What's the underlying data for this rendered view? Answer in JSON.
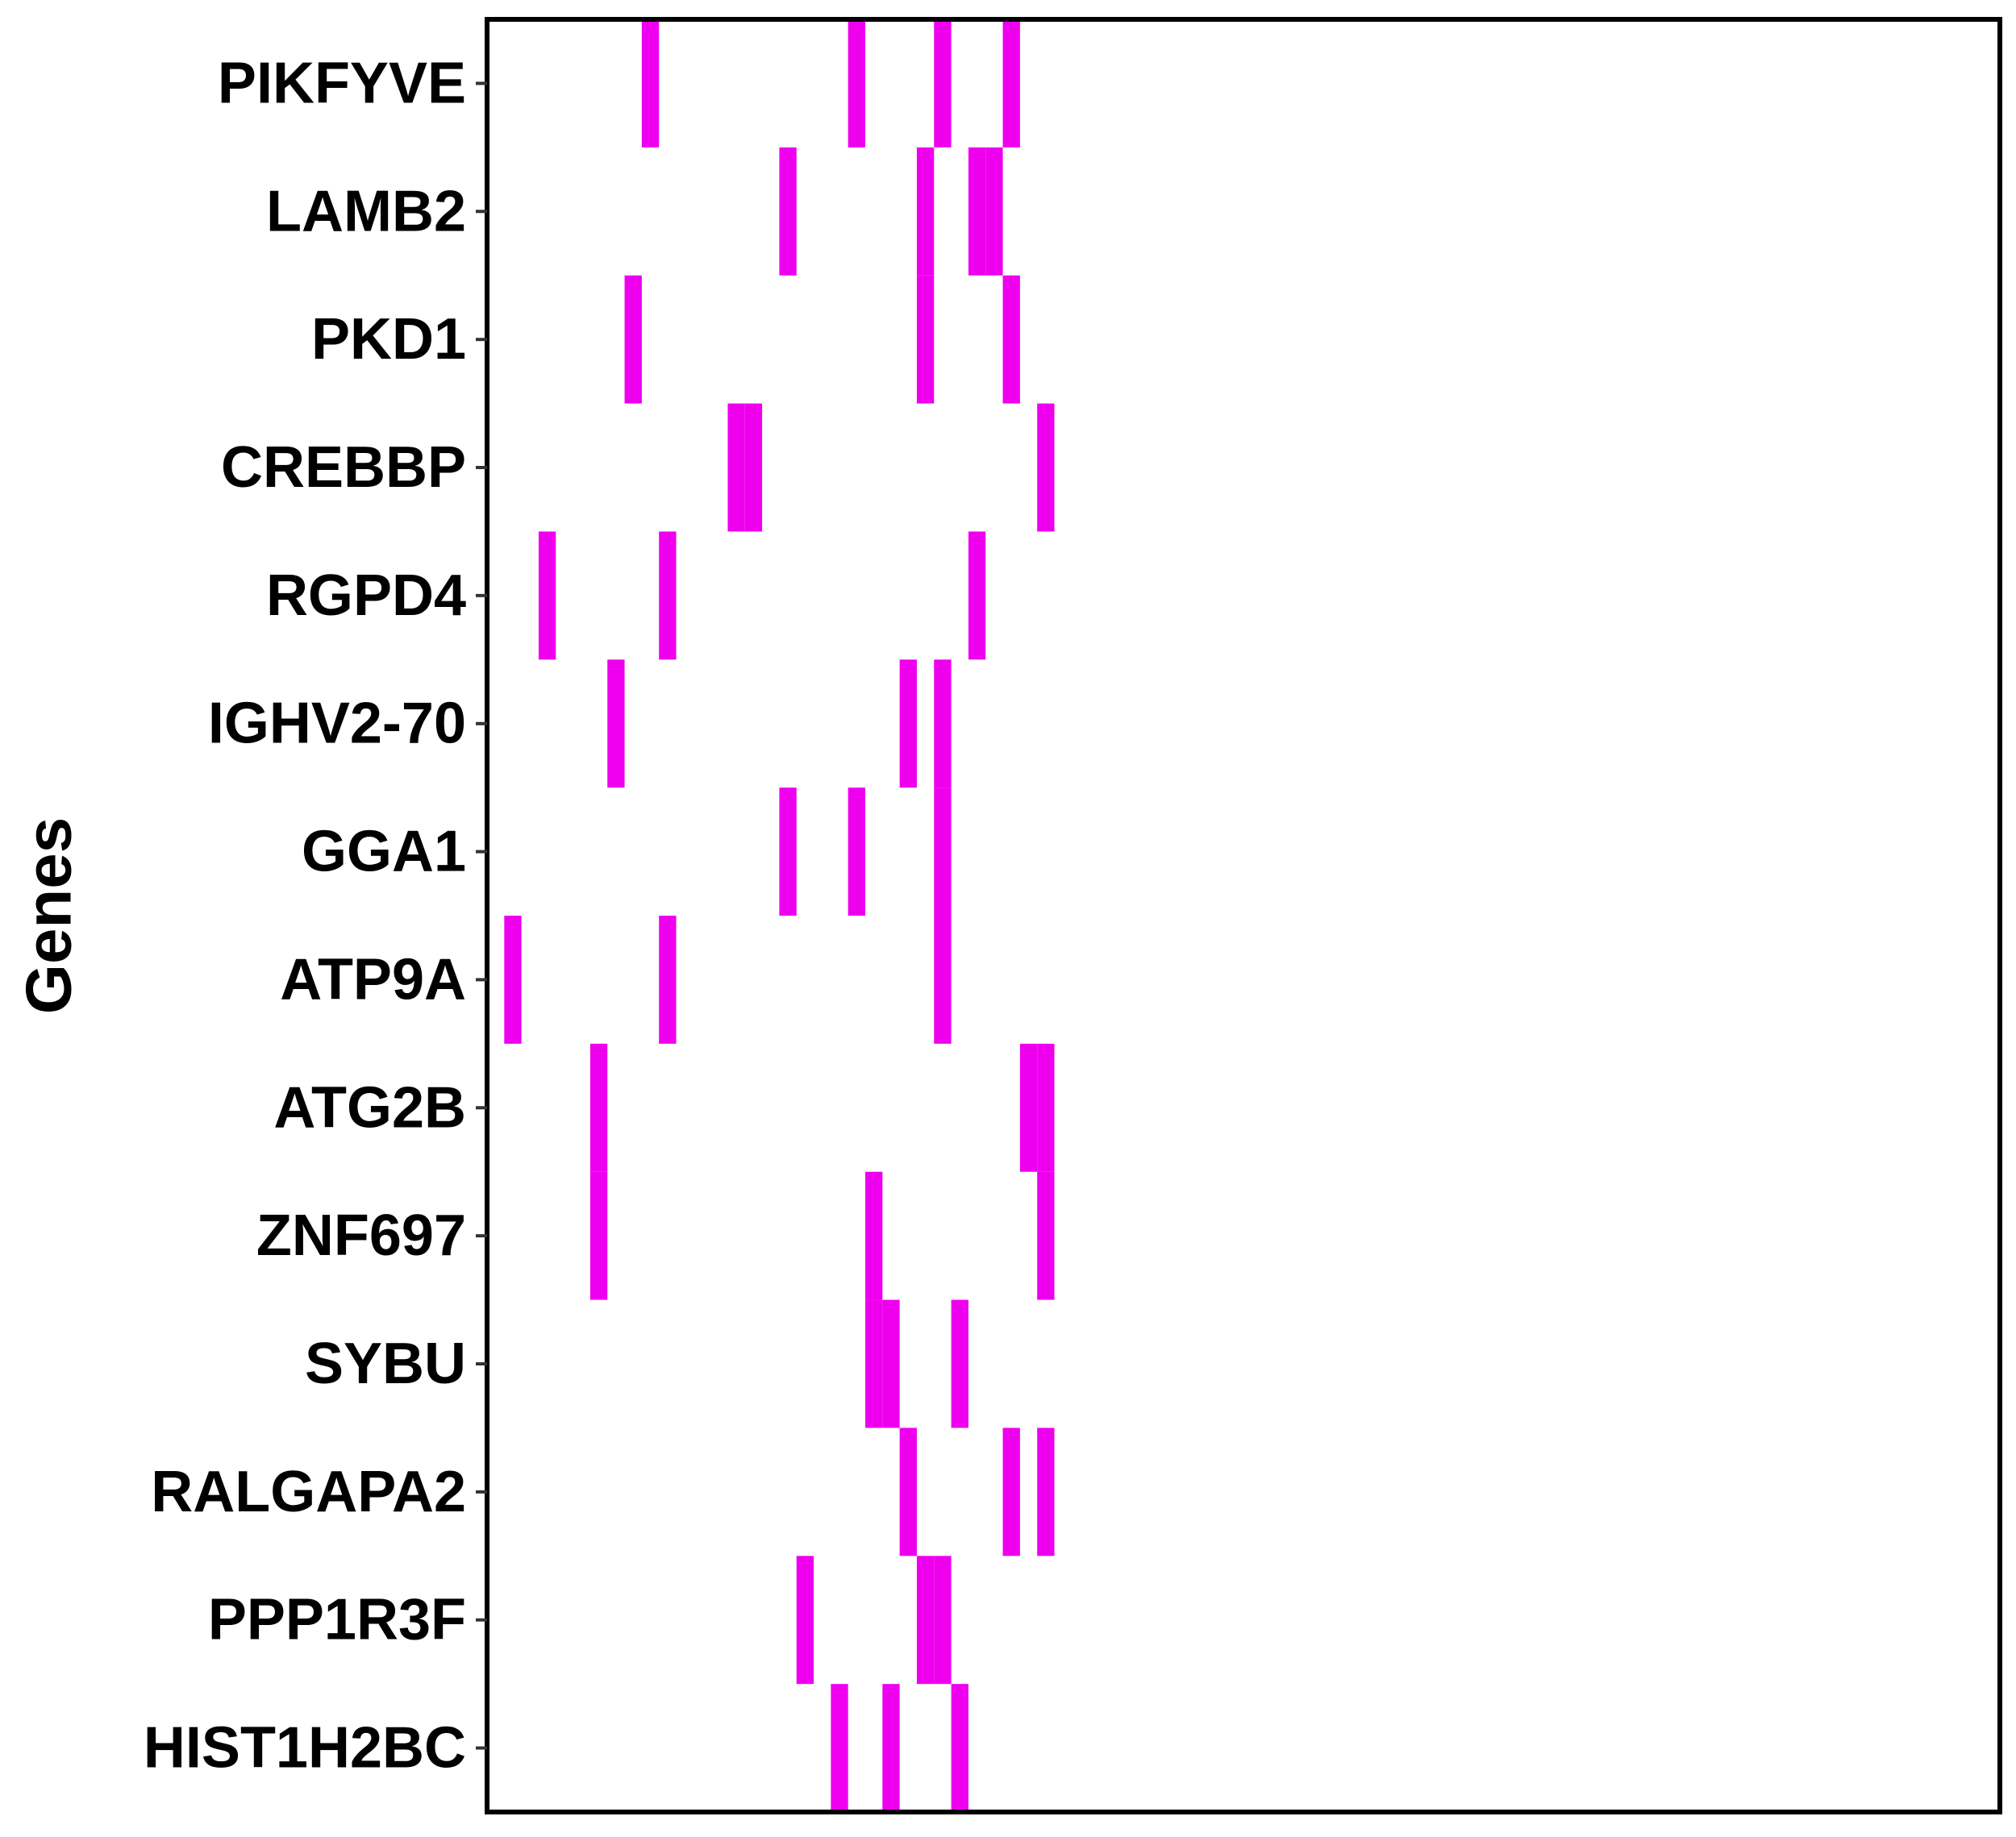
{
  "chart_data": {
    "type": "heatmap",
    "ylabel": "Genes",
    "xlabel": "",
    "n_samples": 88,
    "mutation_color": "#ee00ee",
    "frame_color": "#000000",
    "genes": [
      "PIKFYVE",
      "LAMB2",
      "PKD1",
      "CREBBP",
      "RGPD4",
      "IGHV2-70",
      "GGA1",
      "ATP9A",
      "ATG2B",
      "ZNF697",
      "SYBU",
      "RALGAPA2",
      "PPP1R3F",
      "HIST1H2BC"
    ],
    "mutations": {
      "PIKFYVE": [
        9,
        21,
        26,
        30
      ],
      "LAMB2": [
        17,
        25,
        28,
        29
      ],
      "PKD1": [
        8,
        25,
        30
      ],
      "CREBBP": [
        14,
        15,
        32
      ],
      "RGPD4": [
        3,
        10,
        28
      ],
      "IGHV2-70": [
        7,
        24,
        26
      ],
      "GGA1": [
        17,
        21,
        26
      ],
      "ATP9A": [
        1,
        10,
        26
      ],
      "ATG2B": [
        6,
        31,
        32
      ],
      "ZNF697": [
        6,
        22,
        32
      ],
      "SYBU": [
        22,
        23,
        27
      ],
      "RALGAPA2": [
        24,
        30,
        32
      ],
      "PPP1R3F": [
        18,
        25,
        26
      ],
      "HIST1H2BC": [
        20,
        23,
        27
      ]
    }
  }
}
